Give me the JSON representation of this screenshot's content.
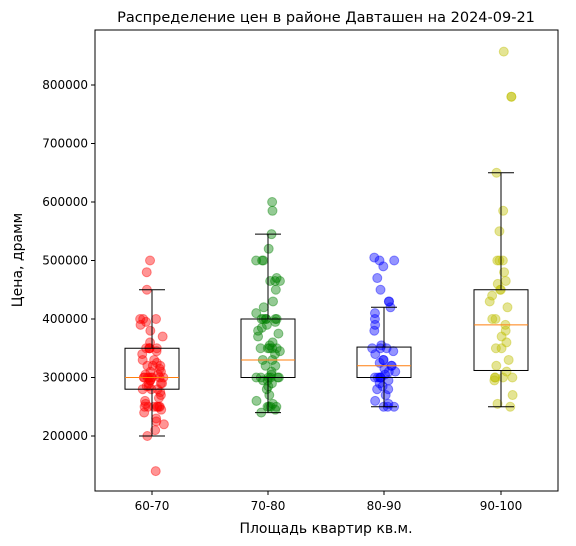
{
  "chart_data": {
    "type": "boxplot-with-jittered-points",
    "title": "Распределение цен в районе Давташен на 2024-09-21",
    "xlabel": "Площадь квартир кв.м.",
    "ylabel": "Цена, драмм",
    "ylim": [
      100000,
      900000
    ],
    "yticks": [
      200000,
      300000,
      400000,
      500000,
      600000,
      700000,
      800000
    ],
    "ytick_labels": [
      "200000",
      "300000",
      "400000",
      "500000",
      "600000",
      "700000",
      "800000"
    ],
    "grid": false,
    "categories": [
      "60-70",
      "70-80",
      "80-90",
      "90-100"
    ],
    "groups": [
      {
        "category": "60-70",
        "color": "#ff0000",
        "box": {
          "whisker_low": 200000,
          "q1": 280000,
          "median": 300000,
          "q3": 350000,
          "whisker_high": 450000
        },
        "points": [
          140000,
          200000,
          210000,
          220000,
          225000,
          230000,
          240000,
          245000,
          250000,
          250000,
          250000,
          250000,
          250000,
          250000,
          250000,
          255000,
          260000,
          265000,
          270000,
          275000,
          280000,
          280000,
          280000,
          285000,
          285000,
          290000,
          290000,
          290000,
          295000,
          295000,
          300000,
          300000,
          300000,
          300000,
          300000,
          300000,
          300000,
          300000,
          305000,
          305000,
          310000,
          310000,
          315000,
          320000,
          320000,
          320000,
          325000,
          330000,
          330000,
          340000,
          345000,
          350000,
          350000,
          350000,
          350000,
          350000,
          360000,
          370000,
          380000,
          390000,
          395000,
          400000,
          400000,
          400000,
          450000,
          480000,
          500000
        ]
      },
      {
        "category": "70-80",
        "color": "#008000",
        "box": {
          "whisker_low": 240000,
          "q1": 300000,
          "median": 330000,
          "q3": 400000,
          "whisker_high": 545000
        },
        "points": [
          240000,
          245000,
          250000,
          250000,
          250000,
          250000,
          255000,
          260000,
          270000,
          280000,
          285000,
          290000,
          295000,
          295000,
          300000,
          300000,
          300000,
          300000,
          300000,
          300000,
          305000,
          310000,
          320000,
          320000,
          330000,
          330000,
          340000,
          345000,
          350000,
          350000,
          350000,
          350000,
          350000,
          355000,
          360000,
          370000,
          375000,
          380000,
          385000,
          390000,
          395000,
          400000,
          400000,
          400000,
          400000,
          400000,
          400000,
          410000,
          420000,
          430000,
          450000,
          465000,
          465000,
          465000,
          470000,
          500000,
          500000,
          500000,
          520000,
          545000,
          585000,
          600000
        ]
      },
      {
        "category": "80-90",
        "color": "#0000ff",
        "box": {
          "whisker_low": 250000,
          "q1": 300000,
          "median": 320000,
          "q3": 352000,
          "whisker_high": 420000
        },
        "points": [
          250000,
          250000,
          250000,
          255000,
          260000,
          270000,
          280000,
          280000,
          285000,
          290000,
          295000,
          300000,
          300000,
          300000,
          300000,
          300000,
          305000,
          310000,
          310000,
          315000,
          320000,
          320000,
          325000,
          330000,
          330000,
          340000,
          345000,
          350000,
          350000,
          350000,
          355000,
          380000,
          390000,
          400000,
          410000,
          420000,
          430000,
          430000,
          450000,
          470000,
          490000,
          500000,
          500000,
          505000
        ]
      },
      {
        "category": "90-100",
        "color": "#bfbf00",
        "box": {
          "whisker_low": 250000,
          "q1": 312000,
          "median": 390000,
          "q3": 450000,
          "whisker_high": 650000
        },
        "points": [
          250000,
          255000,
          270000,
          295000,
          300000,
          300000,
          300000,
          300000,
          310000,
          320000,
          330000,
          350000,
          350000,
          360000,
          370000,
          380000,
          390000,
          400000,
          400000,
          420000,
          430000,
          440000,
          450000,
          450000,
          460000,
          465000,
          480000,
          500000,
          500000,
          500000,
          550000,
          585000,
          650000,
          780000,
          780000,
          857000
        ]
      }
    ]
  }
}
